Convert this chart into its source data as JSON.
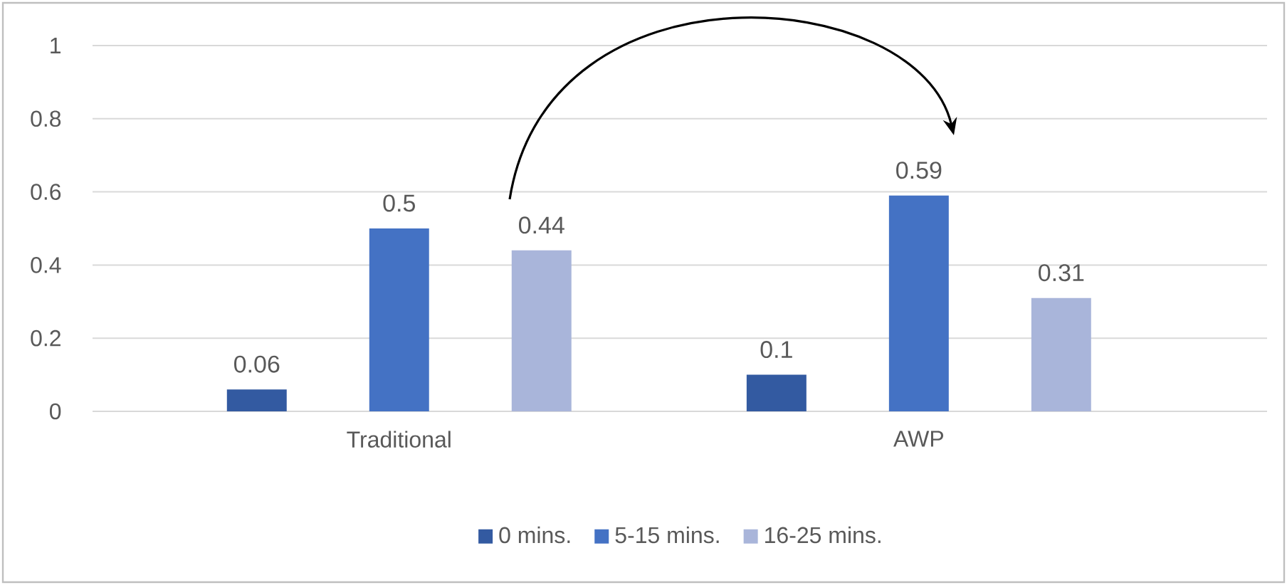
{
  "chart_data": {
    "type": "bar",
    "categories": [
      "Traditional",
      "AWP"
    ],
    "series": [
      {
        "name": "0 mins.",
        "color": "#335aa1",
        "values": [
          0.06,
          0.1
        ]
      },
      {
        "name": "5-15 mins.",
        "color": "#4472c4",
        "values": [
          0.5,
          0.59
        ]
      },
      {
        "name": "16-25 mins.",
        "color": "#a9b5da",
        "values": [
          0.44,
          0.31
        ]
      }
    ],
    "ylim": [
      0,
      1
    ],
    "yticks": [
      0,
      0.2,
      0.4,
      0.6,
      0.8,
      1
    ],
    "grid": "y",
    "legend": "bottom",
    "data_labels": true
  }
}
